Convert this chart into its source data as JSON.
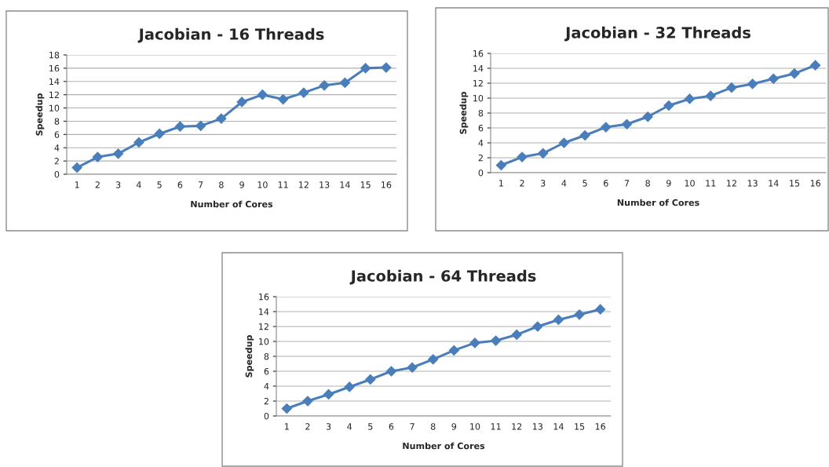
{
  "chart_data": [
    {
      "type": "line",
      "title": "Jacobian - 16 Threads",
      "xlabel": "Number of Cores",
      "ylabel": "Speedup",
      "categories": [
        "1",
        "2",
        "3",
        "4",
        "5",
        "6",
        "7",
        "8",
        "9",
        "10",
        "11",
        "12",
        "13",
        "14",
        "15",
        "16"
      ],
      "series": [
        {
          "color": "#4a7ebb",
          "values": [
            1,
            2.6,
            3.1,
            4.8,
            6.1,
            7.2,
            7.3,
            8.4,
            10.9,
            12.0,
            11.3,
            12.3,
            13.4,
            13.8,
            16.0,
            16.1
          ]
        }
      ],
      "ylim": [
        0,
        18
      ],
      "yticks": [
        0,
        2,
        4,
        6,
        8,
        10,
        12,
        14,
        16,
        18
      ],
      "grid": "y",
      "legend": false,
      "marker": "diamond",
      "line_style": "solid"
    },
    {
      "type": "line",
      "title": "Jacobian - 32 Threads",
      "xlabel": "Number of Cores",
      "ylabel": "Speedup",
      "categories": [
        "1",
        "2",
        "3",
        "4",
        "5",
        "6",
        "7",
        "8",
        "9",
        "10",
        "11",
        "12",
        "13",
        "14",
        "15",
        "16"
      ],
      "series": [
        {
          "color": "#4a7ebb",
          "values": [
            1,
            2.1,
            2.6,
            4.0,
            5.0,
            6.1,
            6.5,
            7.5,
            9.0,
            9.9,
            10.3,
            11.4,
            11.9,
            12.6,
            13.3,
            14.4
          ]
        }
      ],
      "ylim": [
        0,
        16
      ],
      "yticks": [
        0,
        2,
        4,
        6,
        8,
        10,
        12,
        14,
        16
      ],
      "grid": "y",
      "legend": false,
      "marker": "diamond",
      "line_style": "solid"
    },
    {
      "type": "line",
      "title": "Jacobian - 64 Threads",
      "xlabel": "Number of Cores",
      "ylabel": "Speedup",
      "categories": [
        "1",
        "2",
        "3",
        "4",
        "5",
        "6",
        "7",
        "8",
        "9",
        "10",
        "11",
        "12",
        "13",
        "14",
        "15",
        "16"
      ],
      "series": [
        {
          "color": "#4a7ebb",
          "values": [
            1,
            2.0,
            2.9,
            3.9,
            4.9,
            6.0,
            6.5,
            7.6,
            8.8,
            9.8,
            10.1,
            10.9,
            12.0,
            12.9,
            13.6,
            14.3
          ]
        }
      ],
      "ylim": [
        0,
        16
      ],
      "yticks": [
        0,
        2,
        4,
        6,
        8,
        10,
        12,
        14,
        16
      ],
      "grid": "y",
      "legend": false,
      "marker": "diamond",
      "line_style": "solid"
    }
  ]
}
